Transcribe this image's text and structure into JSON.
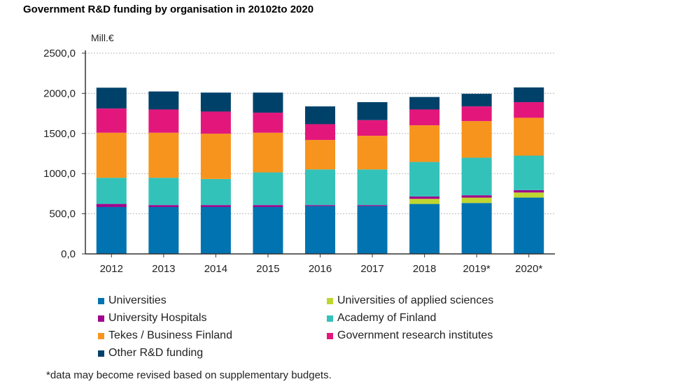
{
  "chart_data": {
    "type": "bar",
    "stacked": true,
    "title": "Government R&D funding by organisation in 20102to 2020",
    "ylabel": "Mill.€",
    "xlabel": "",
    "ylim": [
      0,
      2500
    ],
    "yticks": [
      "0,0",
      "500,0",
      "1000,0",
      "1500,0",
      "2000,0",
      "2500,0"
    ],
    "grid": true,
    "legend_position": "bottom",
    "categories": [
      "2012",
      "2013",
      "2014",
      "2015",
      "2016",
      "2017",
      "2018",
      "2019*",
      "2020*"
    ],
    "series": [
      {
        "name": "Universities",
        "color": "#0073b0",
        "values": [
          584,
          584,
          584,
          584,
          596,
          596,
          622,
          634,
          701
        ]
      },
      {
        "name": "Universities of applied sciences",
        "color": "#c0d630",
        "values": [
          0,
          0,
          0,
          0,
          0,
          0,
          64,
          67,
          64
        ]
      },
      {
        "name": "University Hospitals",
        "color": "#a0008c",
        "values": [
          38,
          24,
          24,
          24,
          12,
          12,
          29,
          29,
          29
        ]
      },
      {
        "name": "Academy of Finland",
        "color": "#33c2b9",
        "values": [
          326,
          340,
          325,
          407,
          444,
          444,
          430,
          468,
          430
        ]
      },
      {
        "name": "Tekes / Business Finland",
        "color": "#f7941d",
        "values": [
          561,
          561,
          564,
          494,
          367,
          419,
          457,
          456,
          471
        ]
      },
      {
        "name": "Government research institutes",
        "color": "#e3177b",
        "values": [
          302,
          290,
          276,
          250,
          197,
          195,
          197,
          183,
          195
        ]
      },
      {
        "name": "Other R&D funding",
        "color": "#00416a",
        "values": [
          259,
          224,
          236,
          250,
          221,
          224,
          155,
          157,
          183
        ]
      }
    ],
    "legend_order": [
      0,
      1,
      2,
      3,
      4,
      5,
      6
    ],
    "footnote": "*data may become revised based on supplementary budgets."
  }
}
